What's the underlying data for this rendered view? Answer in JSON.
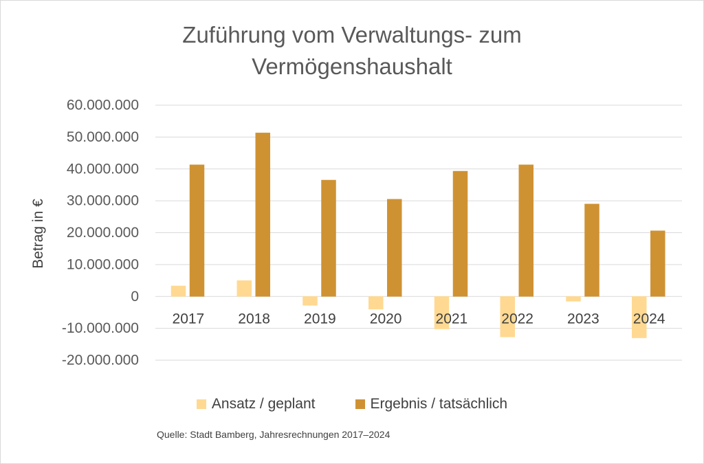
{
  "chart_data": {
    "type": "bar",
    "title_lines": [
      "Zuführung vom Verwaltungs- zum",
      "Vermögenshaushalt"
    ],
    "ylabel": "Betrag in €",
    "categories": [
      "2017",
      "2018",
      "2019",
      "2020",
      "2021",
      "2022",
      "2023",
      "2024"
    ],
    "series": [
      {
        "name": "Ansatz / geplant",
        "color": "#FFD992",
        "values": [
          3300000,
          5000000,
          -2800000,
          -4000000,
          -10200000,
          -12700000,
          -1500000,
          -13000000
        ]
      },
      {
        "name": "Ergebnis / tatsächlich",
        "color": "#CF9233",
        "values": [
          41300000,
          51300000,
          36500000,
          30500000,
          39300000,
          41300000,
          29000000,
          20600000
        ]
      }
    ],
    "yticks": [
      60000000,
      50000000,
      40000000,
      30000000,
      20000000,
      10000000,
      0,
      -10000000,
      -20000000
    ],
    "ytick_labels": [
      "60.000.000",
      "50.000.000",
      "40.000.000",
      "30.000.000",
      "20.000.000",
      "10.000.000",
      "0",
      "-10.000.000",
      "-20.000.000"
    ],
    "ylim": [
      -20000000,
      60000000
    ],
    "legend_position": "bottom",
    "grid": true,
    "gridline_color": "#D9D9D9",
    "source": "Quelle: Stadt Bamberg, Jahresrechnungen 2017–2024"
  }
}
